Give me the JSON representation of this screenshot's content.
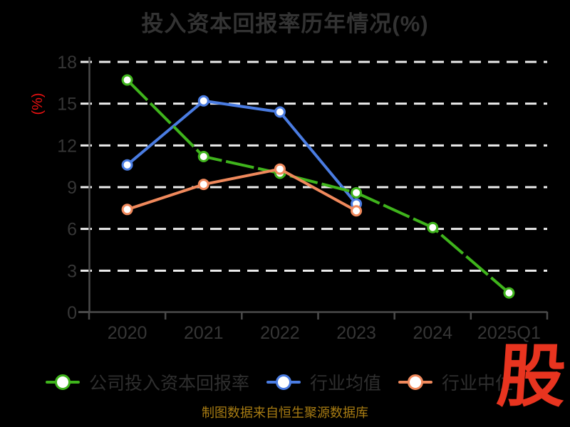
{
  "title": "投入资本回报率历年情况(%)",
  "y_axis": {
    "unit_label": "(%)",
    "ticks": [
      0,
      3,
      6,
      9,
      12,
      15,
      18
    ],
    "max": 18
  },
  "footer": {
    "source_text": "制图数据来自恒生聚源数据库"
  },
  "logo": {
    "text": "股",
    "color": "#e8341f"
  },
  "colors": {
    "background": "#000000",
    "title_text": "#333333",
    "axis_line": "#4a4a4a",
    "tick_label": "#363636",
    "gridline": "#ececec",
    "unit_label": "#ee1111",
    "legend_text": "#2f2f2f",
    "source_text": "#a87c12"
  },
  "chart_data": {
    "type": "line",
    "title": "投入资本回报率历年情况(%)",
    "xlabel": "",
    "ylabel": "(%)",
    "ylim": [
      0,
      18
    ],
    "grid": "horizontal-dashed-white",
    "legend_position": "bottom",
    "categories": [
      "2020",
      "2021",
      "2022",
      "2023",
      "2024",
      "2025Q1"
    ],
    "series": [
      {
        "name": "公司投入资本回报率",
        "color": "#3fb41c",
        "dash": "40 6",
        "values": [
          16.7,
          11.2,
          10.0,
          8.6,
          6.1,
          1.4
        ]
      },
      {
        "name": "行业均值",
        "color": "#4a7ce2",
        "dash": null,
        "values": [
          10.6,
          15.2,
          14.4,
          7.8,
          null,
          null
        ]
      },
      {
        "name": "行业中位",
        "color": "#f0895c",
        "dash": null,
        "values": [
          7.4,
          9.2,
          10.3,
          7.3,
          null,
          null
        ]
      }
    ]
  }
}
